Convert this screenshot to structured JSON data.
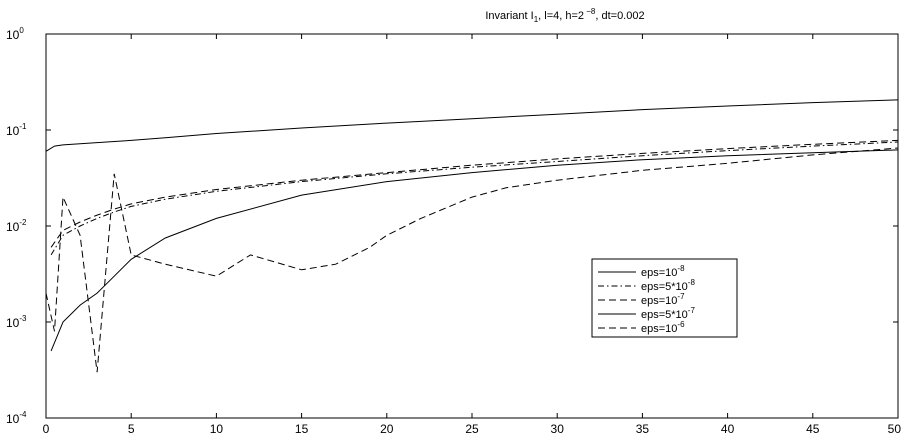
{
  "chart_data": {
    "type": "line",
    "title": {
      "prefix": "Invariant I",
      "sub": "1",
      "middle": ",  l=4,  h=2",
      "exp": " −8",
      "suffix": ", dt=0.002"
    },
    "xlim": [
      0,
      50
    ],
    "ylim_log10": [
      -4,
      0
    ],
    "y_scale": "log",
    "grid": false,
    "legend_position": "right-middle",
    "x_ticks": [
      "0",
      "5",
      "10",
      "15",
      "20",
      "25",
      "30",
      "35",
      "40",
      "45",
      "50"
    ],
    "y_ticks": [
      {
        "base": "10",
        "exp": "-4"
      },
      {
        "base": "10",
        "exp": "-3"
      },
      {
        "base": "10",
        "exp": "-2"
      },
      {
        "base": "10",
        "exp": "-1"
      },
      {
        "base": "10",
        "exp": "0"
      }
    ],
    "series": [
      {
        "legend_base": "eps=10",
        "legend_exp": "-8",
        "style": "solid",
        "x": [
          0.3,
          1,
          2,
          3,
          4,
          5,
          7,
          10,
          15,
          20,
          25,
          30,
          35,
          40,
          45,
          50
        ],
        "y": [
          0.0005,
          0.001,
          0.0015,
          0.002,
          0.003,
          0.0045,
          0.0075,
          0.012,
          0.021,
          0.029,
          0.036,
          0.043,
          0.049,
          0.054,
          0.058,
          0.062
        ]
      },
      {
        "legend_base": "eps=5*10",
        "legend_exp": "-8",
        "style": "dashdot",
        "x": [
          0.3,
          1,
          2,
          3,
          4,
          5,
          7,
          10,
          15,
          20,
          25,
          30,
          35,
          40,
          45,
          50
        ],
        "y": [
          0.005,
          0.008,
          0.01,
          0.012,
          0.014,
          0.016,
          0.019,
          0.023,
          0.029,
          0.035,
          0.041,
          0.047,
          0.054,
          0.061,
          0.068,
          0.075
        ]
      },
      {
        "legend_base": "eps=10",
        "legend_exp": "-7",
        "style": "dashed",
        "x": [
          0.3,
          1,
          2,
          3,
          4,
          5,
          7,
          10,
          15,
          20,
          25,
          30,
          35,
          40,
          45,
          50
        ],
        "y": [
          0.006,
          0.009,
          0.011,
          0.013,
          0.015,
          0.017,
          0.02,
          0.024,
          0.03,
          0.036,
          0.043,
          0.05,
          0.057,
          0.064,
          0.071,
          0.078
        ]
      },
      {
        "legend_base": "eps=5*10",
        "legend_exp": "-7",
        "style": "solid",
        "x": [
          0,
          0.5,
          1,
          2,
          3,
          5,
          7,
          10,
          15,
          20,
          25,
          30,
          35,
          40,
          45,
          50
        ],
        "y": [
          0.06,
          0.068,
          0.07,
          0.072,
          0.074,
          0.078,
          0.083,
          0.092,
          0.105,
          0.118,
          0.131,
          0.146,
          0.163,
          0.178,
          0.193,
          0.206
        ]
      },
      {
        "legend_base": "eps=10",
        "legend_exp": "-6",
        "style": "dashed",
        "x": [
          0,
          0.5,
          1,
          2,
          3,
          4,
          5,
          7,
          10,
          12,
          15,
          17,
          19,
          20,
          22,
          25,
          27,
          30,
          35,
          40,
          45,
          50
        ],
        "y": [
          0.002,
          0.0008,
          0.02,
          0.008,
          0.0003,
          0.035,
          0.005,
          0.004,
          0.003,
          0.005,
          0.0035,
          0.004,
          0.006,
          0.008,
          0.012,
          0.02,
          0.025,
          0.03,
          0.038,
          0.045,
          0.055,
          0.065
        ]
      }
    ]
  }
}
